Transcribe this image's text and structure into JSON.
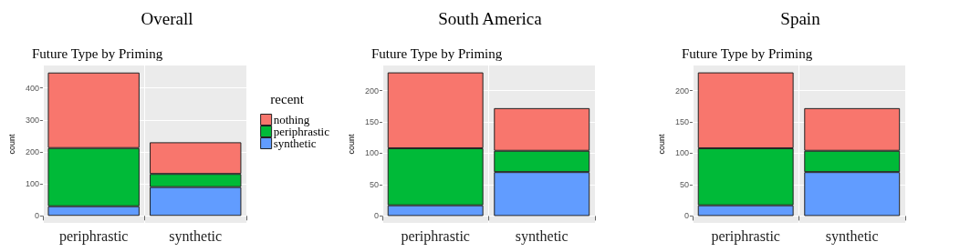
{
  "chart_data": [
    {
      "type": "bar",
      "title": "Overall",
      "subtitle": "Future Type by Priming",
      "ylabel": "count",
      "categories": [
        "periphrastic",
        "synthetic"
      ],
      "stacked": true,
      "legend_title": "recent",
      "legend": "right",
      "grid": true,
      "ylim": [
        -22,
        470
      ],
      "yticks": [
        0,
        100,
        200,
        300,
        400
      ],
      "series": [
        {
          "name": "synthetic",
          "color": "#619cff",
          "values": [
            30,
            90
          ]
        },
        {
          "name": "periphrastic",
          "color": "#00ba38",
          "values": [
            182,
            41
          ]
        },
        {
          "name": "nothing",
          "color": "#f8766d",
          "values": [
            236,
            99
          ]
        }
      ]
    },
    {
      "type": "bar",
      "title": "South America",
      "subtitle": "Future Type by Priming",
      "ylabel": "count",
      "categories": [
        "periphrastic",
        "synthetic"
      ],
      "stacked": true,
      "grid": true,
      "ylim": [
        -11,
        240
      ],
      "yticks": [
        0,
        50,
        100,
        150,
        200
      ],
      "series": [
        {
          "color": "#619cff",
          "values": [
            17,
            70
          ]
        },
        {
          "color": "#00ba38",
          "values": [
            91,
            34
          ]
        },
        {
          "color": "#f8766d",
          "values": [
            121,
            68
          ]
        }
      ]
    },
    {
      "type": "bar",
      "title": "Spain",
      "subtitle": "Future Type by Priming",
      "ylabel": "count",
      "categories": [
        "periphrastic",
        "synthetic"
      ],
      "stacked": true,
      "grid": true,
      "ylim": [
        -11,
        240
      ],
      "yticks": [
        0,
        50,
        100,
        150,
        200
      ],
      "series": [
        {
          "color": "#619cff",
          "values": [
            17,
            70
          ]
        },
        {
          "color": "#00ba38",
          "values": [
            91,
            34
          ]
        },
        {
          "color": "#f8766d",
          "values": [
            121,
            68
          ]
        }
      ]
    }
  ]
}
